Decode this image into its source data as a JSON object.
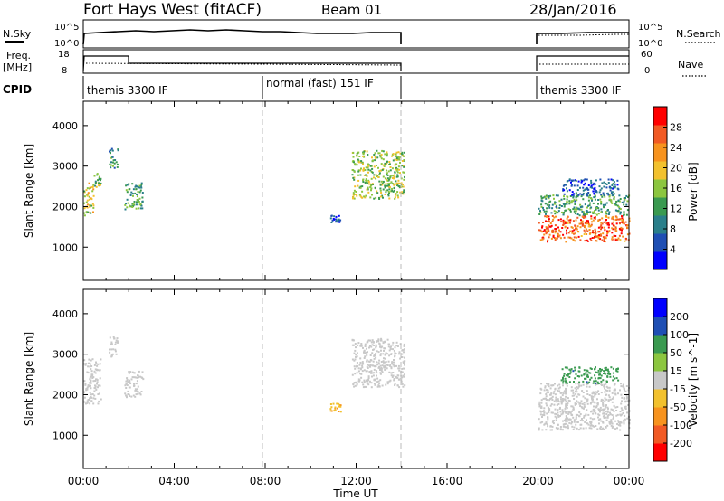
{
  "header": {
    "title": "Fort Hays West (fitACF)",
    "beam": "Beam 01",
    "date": "28/Jan/2016"
  },
  "panel_labels": {
    "nsky": "N.Sky",
    "nsearch": "N.Search",
    "freq_line1": "Freq.",
    "freq_line2": "[MHz]",
    "nave": "Nave",
    "cpid": "CPID"
  },
  "noise_axis": {
    "left_ticks": [
      "10^5",
      "10^0"
    ],
    "right_ticks": [
      "10^5",
      "10^0"
    ]
  },
  "freq_axis": {
    "left_ticks": [
      "18",
      "8"
    ],
    "right_ticks": [
      "60",
      "0"
    ]
  },
  "cpid_segments": [
    {
      "label": "themis 3300 IF",
      "start": 0.0,
      "end": 8.0
    },
    {
      "label": "normal (fast) 151 IF",
      "start": 8.0,
      "end": 14.1
    },
    {
      "label": "themis 3300 IF",
      "start": 20.0,
      "end": 24.0
    }
  ],
  "chart_data": [
    {
      "type": "heatmap",
      "title": "Power",
      "xlabel": "Time UT",
      "ylabel": "Slant Range [km]",
      "xlim": [
        0,
        24
      ],
      "ylim": [
        180,
        4600
      ],
      "x_ticks": [
        "00:00",
        "04:00",
        "08:00",
        "12:00",
        "16:00",
        "20:00",
        "00:00"
      ],
      "y_ticks": [
        1000,
        2000,
        3000,
        4000
      ],
      "colorbar": {
        "label": "Power [dB]",
        "ticks": [
          "28",
          "24",
          "20",
          "16",
          "12",
          "8",
          "4"
        ],
        "range": [
          0,
          32
        ],
        "colors": [
          "#0000ff",
          "#1f4fb4",
          "#2a7f8a",
          "#3a9a50",
          "#8cc63f",
          "#f2c12e",
          "#f7931e",
          "#f15a24",
          "#ff0000"
        ]
      },
      "data_gaps_ut": [
        [
          14.1,
          20.0
        ]
      ],
      "mode_boundaries_ut": [
        8.0,
        14.1
      ],
      "echo_regions": [
        {
          "ut": [
            0.0,
            0.45
          ],
          "range_km": [
            1800,
            2600
          ],
          "power_db": 18
        },
        {
          "ut": [
            0.45,
            0.75
          ],
          "range_km": [
            2500,
            2900
          ],
          "power_db": 14
        },
        {
          "ut": [
            1.1,
            1.5
          ],
          "range_km": [
            2950,
            3450
          ],
          "power_db": 10
        },
        {
          "ut": [
            1.8,
            2.6
          ],
          "range_km": [
            1950,
            2600
          ],
          "power_db": 12
        },
        {
          "ut": [
            10.8,
            11.3
          ],
          "range_km": [
            1600,
            1800
          ],
          "power_db": 6
        },
        {
          "ut": [
            11.8,
            14.1
          ],
          "range_km": [
            2200,
            3400
          ],
          "power_db": 16
        },
        {
          "ut": [
            20.0,
            24.0
          ],
          "range_km": [
            1150,
            1800
          ],
          "power_db": 26
        },
        {
          "ut": [
            20.0,
            24.0
          ],
          "range_km": [
            1800,
            2300
          ],
          "power_db": 12
        },
        {
          "ut": [
            21.0,
            23.5
          ],
          "range_km": [
            2300,
            2700
          ],
          "power_db": 6
        }
      ]
    },
    {
      "type": "heatmap",
      "title": "Velocity",
      "xlabel": "Time UT",
      "ylabel": "Slant Range [km]",
      "xlim": [
        0,
        24
      ],
      "ylim": [
        180,
        4600
      ],
      "x_ticks": [
        "00:00",
        "04:00",
        "08:00",
        "12:00",
        "16:00",
        "20:00",
        "00:00"
      ],
      "y_ticks": [
        1000,
        2000,
        3000,
        4000
      ],
      "colorbar": {
        "label": "Velocity [m s^-1]",
        "ticks": [
          "200",
          "100",
          "50",
          "15",
          "-15",
          "-50",
          "-100",
          "-200"
        ],
        "range": [
          -250,
          250
        ],
        "colors": [
          "#ff0000",
          "#f15a24",
          "#f7931e",
          "#f2c12e",
          "#c8c8c8",
          "#8cc63f",
          "#3a9a50",
          "#1f4fb4",
          "#0000ff"
        ]
      },
      "data_gaps_ut": [
        [
          14.1,
          20.0
        ]
      ],
      "mode_boundaries_ut": [
        8.0,
        14.1
      ],
      "echo_regions": [
        {
          "ut": [
            0.0,
            0.75
          ],
          "range_km": [
            1800,
            2900
          ],
          "velocity": 0
        },
        {
          "ut": [
            1.1,
            1.5
          ],
          "range_km": [
            2950,
            3450
          ],
          "velocity": 0
        },
        {
          "ut": [
            1.8,
            2.6
          ],
          "range_km": [
            1950,
            2600
          ],
          "velocity": 0
        },
        {
          "ut": [
            10.8,
            11.3
          ],
          "range_km": [
            1600,
            1800
          ],
          "velocity": -80
        },
        {
          "ut": [
            11.8,
            14.1
          ],
          "range_km": [
            2200,
            3400
          ],
          "velocity": 0
        },
        {
          "ut": [
            20.0,
            24.0
          ],
          "range_km": [
            1150,
            2300
          ],
          "velocity": 0
        },
        {
          "ut": [
            21.0,
            23.5
          ],
          "range_km": [
            2300,
            2700
          ],
          "velocity": 120
        }
      ]
    }
  ]
}
